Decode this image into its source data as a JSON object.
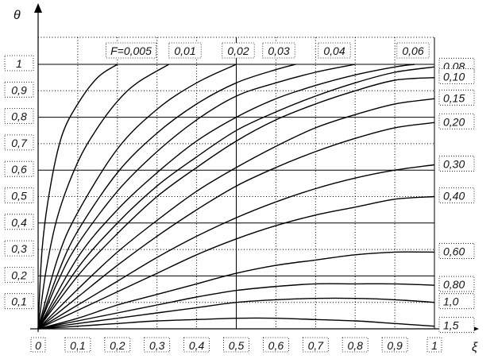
{
  "chart_data": {
    "type": "line",
    "title": "",
    "xlabel": "ξ",
    "ylabel": "θ",
    "xlim": [
      0,
      1
    ],
    "ylim": [
      0,
      1
    ],
    "x_ticks": [
      {
        "value": 0,
        "label": "0"
      },
      {
        "value": 0.1,
        "label": "0,1"
      },
      {
        "value": 0.2,
        "label": "0,2"
      },
      {
        "value": 0.3,
        "label": "0,3"
      },
      {
        "value": 0.4,
        "label": "0,4"
      },
      {
        "value": 0.5,
        "label": "0,5"
      },
      {
        "value": 0.6,
        "label": "0,6"
      },
      {
        "value": 0.7,
        "label": "0,7"
      },
      {
        "value": 0.8,
        "label": "0,8"
      },
      {
        "value": 0.9,
        "label": "0,9"
      },
      {
        "value": 1.0,
        "label": "1"
      }
    ],
    "y_ticks": [
      {
        "value": 0.1,
        "label": "0,1"
      },
      {
        "value": 0.2,
        "label": "0,2"
      },
      {
        "value": 0.3,
        "label": "0,3"
      },
      {
        "value": 0.4,
        "label": "0,4"
      },
      {
        "value": 0.5,
        "label": "0,5"
      },
      {
        "value": 0.6,
        "label": "0,6"
      },
      {
        "value": 0.7,
        "label": "0,7"
      },
      {
        "value": 0.8,
        "label": "0,8"
      },
      {
        "value": 0.9,
        "label": "0,9"
      },
      {
        "value": 1.0,
        "label": "1"
      }
    ],
    "grid": true,
    "series": [
      {
        "name": "F=0,005",
        "label_at": "top",
        "points": [
          [
            0,
            0
          ],
          [
            0.01,
            0.3
          ],
          [
            0.03,
            0.53
          ],
          [
            0.06,
            0.73
          ],
          [
            0.1,
            0.85
          ],
          [
            0.15,
            0.95
          ],
          [
            0.2,
            1.0
          ]
        ]
      },
      {
        "name": "0,01",
        "label_at": "top",
        "points": [
          [
            0,
            0
          ],
          [
            0.02,
            0.22
          ],
          [
            0.05,
            0.43
          ],
          [
            0.1,
            0.63
          ],
          [
            0.15,
            0.76
          ],
          [
            0.2,
            0.86
          ],
          [
            0.25,
            0.93
          ],
          [
            0.33,
            1.0
          ]
        ]
      },
      {
        "name": "0,02",
        "label_at": "top",
        "points": [
          [
            0,
            0
          ],
          [
            0.05,
            0.27
          ],
          [
            0.1,
            0.44
          ],
          [
            0.2,
            0.68
          ],
          [
            0.3,
            0.83
          ],
          [
            0.4,
            0.93
          ],
          [
            0.5,
            1.0
          ]
        ]
      },
      {
        "name": "0,03",
        "label_at": "top",
        "points": [
          [
            0,
            0
          ],
          [
            0.05,
            0.21
          ],
          [
            0.1,
            0.37
          ],
          [
            0.2,
            0.59
          ],
          [
            0.3,
            0.74
          ],
          [
            0.4,
            0.85
          ],
          [
            0.5,
            0.93
          ],
          [
            0.6,
            0.98
          ],
          [
            0.65,
            1.0
          ]
        ]
      },
      {
        "name": "0,04",
        "label_at": "top",
        "points": [
          [
            0,
            0
          ],
          [
            0.05,
            0.18
          ],
          [
            0.1,
            0.32
          ],
          [
            0.2,
            0.52
          ],
          [
            0.3,
            0.67
          ],
          [
            0.4,
            0.79
          ],
          [
            0.5,
            0.88
          ],
          [
            0.6,
            0.93
          ],
          [
            0.7,
            0.97
          ],
          [
            0.8,
            1.0
          ]
        ]
      },
      {
        "name": "0,06",
        "label_at": "top",
        "points": [
          [
            0,
            0
          ],
          [
            0.1,
            0.27
          ],
          [
            0.2,
            0.45
          ],
          [
            0.3,
            0.59
          ],
          [
            0.4,
            0.71
          ],
          [
            0.5,
            0.8
          ],
          [
            0.6,
            0.87
          ],
          [
            0.7,
            0.92
          ],
          [
            0.8,
            0.96
          ],
          [
            0.9,
            0.99
          ],
          [
            0.95,
            1.0
          ]
        ]
      },
      {
        "name": "0,08",
        "label_at": "right",
        "points": [
          [
            0,
            0
          ],
          [
            0.1,
            0.23
          ],
          [
            0.2,
            0.4
          ],
          [
            0.3,
            0.54
          ],
          [
            0.4,
            0.65
          ],
          [
            0.5,
            0.75
          ],
          [
            0.6,
            0.82
          ],
          [
            0.7,
            0.88
          ],
          [
            0.8,
            0.93
          ],
          [
            0.9,
            0.97
          ],
          [
            1.0,
            0.99
          ]
        ]
      },
      {
        "name": "0,10",
        "label_at": "right",
        "points": [
          [
            0,
            0
          ],
          [
            0.1,
            0.2
          ],
          [
            0.2,
            0.36
          ],
          [
            0.3,
            0.5
          ],
          [
            0.4,
            0.61
          ],
          [
            0.5,
            0.71
          ],
          [
            0.6,
            0.79
          ],
          [
            0.7,
            0.85
          ],
          [
            0.8,
            0.9
          ],
          [
            0.9,
            0.94
          ],
          [
            1.0,
            0.95
          ]
        ]
      },
      {
        "name": "0,15",
        "label_at": "right",
        "points": [
          [
            0,
            0
          ],
          [
            0.1,
            0.15
          ],
          [
            0.2,
            0.29
          ],
          [
            0.3,
            0.41
          ],
          [
            0.4,
            0.52
          ],
          [
            0.5,
            0.61
          ],
          [
            0.6,
            0.69
          ],
          [
            0.7,
            0.76
          ],
          [
            0.8,
            0.81
          ],
          [
            0.9,
            0.85
          ],
          [
            1.0,
            0.87
          ]
        ]
      },
      {
        "name": "0,20",
        "label_at": "right",
        "points": [
          [
            0,
            0
          ],
          [
            0.1,
            0.12
          ],
          [
            0.2,
            0.24
          ],
          [
            0.3,
            0.35
          ],
          [
            0.4,
            0.45
          ],
          [
            0.5,
            0.54
          ],
          [
            0.6,
            0.61
          ],
          [
            0.7,
            0.67
          ],
          [
            0.8,
            0.72
          ],
          [
            0.9,
            0.76
          ],
          [
            1.0,
            0.78
          ]
        ]
      },
      {
        "name": "0,30",
        "label_at": "right",
        "points": [
          [
            0,
            0
          ],
          [
            0.1,
            0.09
          ],
          [
            0.2,
            0.18
          ],
          [
            0.3,
            0.27
          ],
          [
            0.4,
            0.35
          ],
          [
            0.5,
            0.42
          ],
          [
            0.6,
            0.48
          ],
          [
            0.7,
            0.53
          ],
          [
            0.8,
            0.57
          ],
          [
            0.9,
            0.6
          ],
          [
            1.0,
            0.62
          ]
        ]
      },
      {
        "name": "0,40",
        "label_at": "right",
        "points": [
          [
            0,
            0
          ],
          [
            0.1,
            0.07
          ],
          [
            0.2,
            0.14
          ],
          [
            0.3,
            0.21
          ],
          [
            0.4,
            0.28
          ],
          [
            0.5,
            0.34
          ],
          [
            0.6,
            0.39
          ],
          [
            0.7,
            0.43
          ],
          [
            0.8,
            0.46
          ],
          [
            0.9,
            0.49
          ],
          [
            1.0,
            0.5
          ]
        ]
      },
      {
        "name": "0,60",
        "label_at": "right",
        "points": [
          [
            0,
            0
          ],
          [
            0.1,
            0.04
          ],
          [
            0.2,
            0.09
          ],
          [
            0.3,
            0.13
          ],
          [
            0.4,
            0.17
          ],
          [
            0.5,
            0.21
          ],
          [
            0.6,
            0.24
          ],
          [
            0.7,
            0.26
          ],
          [
            0.8,
            0.28
          ],
          [
            0.9,
            0.29
          ],
          [
            1.0,
            0.29
          ]
        ]
      },
      {
        "name": "0,80",
        "label_at": "right",
        "points": [
          [
            0,
            0
          ],
          [
            0.1,
            0.03
          ],
          [
            0.2,
            0.06
          ],
          [
            0.3,
            0.09
          ],
          [
            0.4,
            0.12
          ],
          [
            0.5,
            0.145
          ],
          [
            0.6,
            0.16
          ],
          [
            0.7,
            0.17
          ],
          [
            0.8,
            0.17
          ],
          [
            0.9,
            0.17
          ],
          [
            1.0,
            0.165
          ]
        ]
      },
      {
        "name": "1,0",
        "label_at": "right",
        "points": [
          [
            0,
            0
          ],
          [
            0.1,
            0.02
          ],
          [
            0.2,
            0.04
          ],
          [
            0.3,
            0.06
          ],
          [
            0.4,
            0.08
          ],
          [
            0.5,
            0.1
          ],
          [
            0.6,
            0.11
          ],
          [
            0.7,
            0.115
          ],
          [
            0.8,
            0.115
          ],
          [
            0.9,
            0.11
          ],
          [
            1.0,
            0.1
          ]
        ]
      },
      {
        "name": "1,5",
        "label_at": "right",
        "points": [
          [
            0,
            0
          ],
          [
            0.1,
            0.01
          ],
          [
            0.2,
            0.02
          ],
          [
            0.3,
            0.03
          ],
          [
            0.4,
            0.035
          ],
          [
            0.5,
            0.04
          ],
          [
            0.6,
            0.04
          ],
          [
            0.7,
            0.035
          ],
          [
            0.8,
            0.03
          ],
          [
            0.9,
            0.02
          ],
          [
            1.0,
            0.01
          ]
        ]
      }
    ]
  }
}
